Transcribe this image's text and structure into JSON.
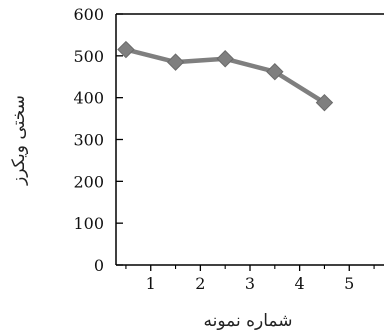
{
  "chart_data": {
    "type": "line",
    "xlabel": "شماره نمونه",
    "ylabel": "سختی ویکرز",
    "xlim": [
      0.3,
      5.7
    ],
    "ylim": [
      0,
      600
    ],
    "x_ticks": [
      1,
      2,
      3,
      4,
      5
    ],
    "y_ticks": [
      0,
      100,
      200,
      300,
      400,
      500,
      600
    ],
    "grid": false,
    "series": [
      {
        "x": [
          0.5,
          1.5,
          2.5,
          3.5,
          4.5
        ],
        "values": [
          515,
          485,
          493,
          462,
          388
        ],
        "marker": "diamond",
        "color": "#7f7f7f"
      }
    ]
  }
}
